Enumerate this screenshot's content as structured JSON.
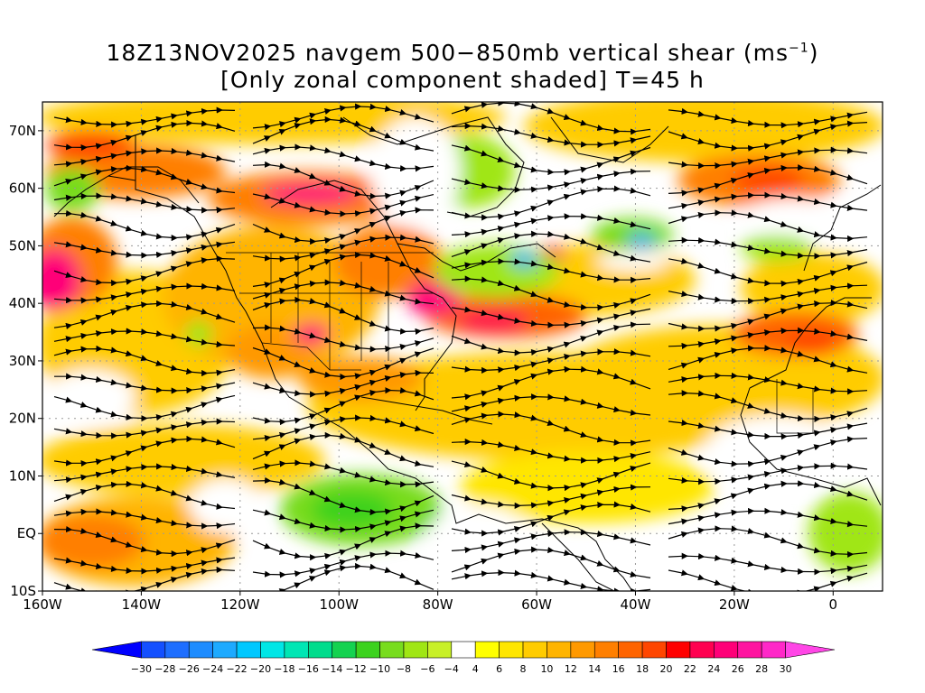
{
  "title": {
    "line1": "18Z13NOV2025 navgem 500−850mb vertical shear (ms",
    "line1_sup": "−1",
    "line1_tail": ")",
    "line2": "[Only zonal component shaded] T=45 h"
  },
  "map": {
    "lon_range": [
      -160,
      10
    ],
    "lat_range": [
      -10,
      75
    ],
    "lat_labels": [
      "70N",
      "60N",
      "50N",
      "40N",
      "30N",
      "20N",
      "10N",
      "EQ",
      "10S"
    ],
    "lat_values": [
      70,
      60,
      50,
      40,
      30,
      20,
      10,
      0,
      -10
    ],
    "lon_labels": [
      "160W",
      "140W",
      "120W",
      "100W",
      "80W",
      "60W",
      "40W",
      "20W",
      "0"
    ],
    "lon_values": [
      -160,
      -140,
      -120,
      -100,
      -80,
      -60,
      -40,
      -20,
      0
    ],
    "grid": "dotted"
  },
  "colorbar": {
    "labels": [
      "−30",
      "−28",
      "−26",
      "−24",
      "−22",
      "−20",
      "−18",
      "−16",
      "−14",
      "−12",
      "−10",
      "−8",
      "−6",
      "−4",
      "4",
      "6",
      "8",
      "10",
      "12",
      "14",
      "16",
      "18",
      "20",
      "22",
      "24",
      "26",
      "28",
      "30"
    ],
    "colors": [
      "#0000ff",
      "#1450ff",
      "#1e6eff",
      "#1e8cff",
      "#1eaaff",
      "#00c8ff",
      "#00e6e6",
      "#00e6b4",
      "#00dc8c",
      "#14d250",
      "#3cd21e",
      "#78dc1e",
      "#a0e614",
      "#c8f028",
      "#ffffff",
      "#ffff00",
      "#ffe600",
      "#ffcc00",
      "#ffb400",
      "#ff9900",
      "#ff7f00",
      "#ff6400",
      "#ff4600",
      "#ff0000",
      "#ff0050",
      "#ff0078",
      "#ff14a0",
      "#ff28c8",
      "#ff46e6"
    ]
  }
}
